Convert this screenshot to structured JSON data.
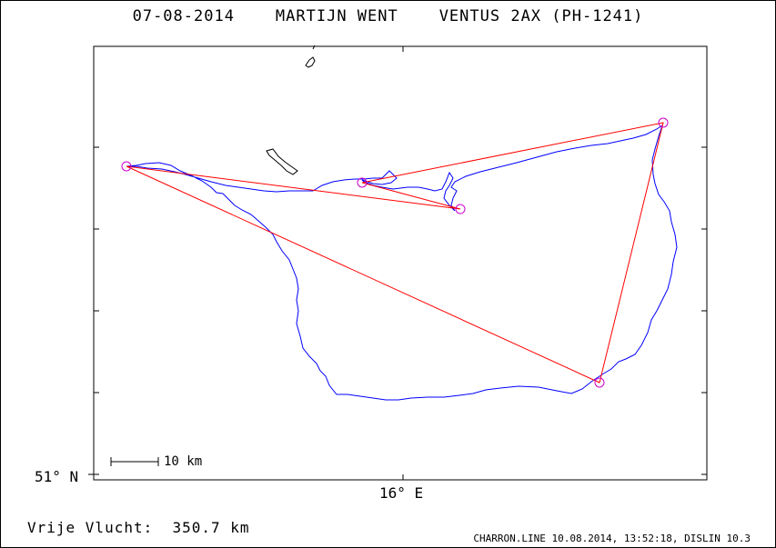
{
  "header": {
    "date": "07-08-2014",
    "pilot": "MARTIJN WENT",
    "glider": "VENTUS 2AX (PH-1241)"
  },
  "axes": {
    "lat_label": "51° N",
    "lon_label": "16° E"
  },
  "scale": {
    "label": "10 km"
  },
  "summary": {
    "distance_label": "Vrije Vlucht:",
    "distance_value": "350.7 km"
  },
  "footer": {
    "text": "CHARRON.LINE 10.08.2014, 13:52:18, DISLIN 10.3"
  },
  "colors": {
    "track": "#0000ff",
    "task": "#ff0000",
    "turnpoint": "#cc00cc",
    "coast": "#000000"
  }
}
